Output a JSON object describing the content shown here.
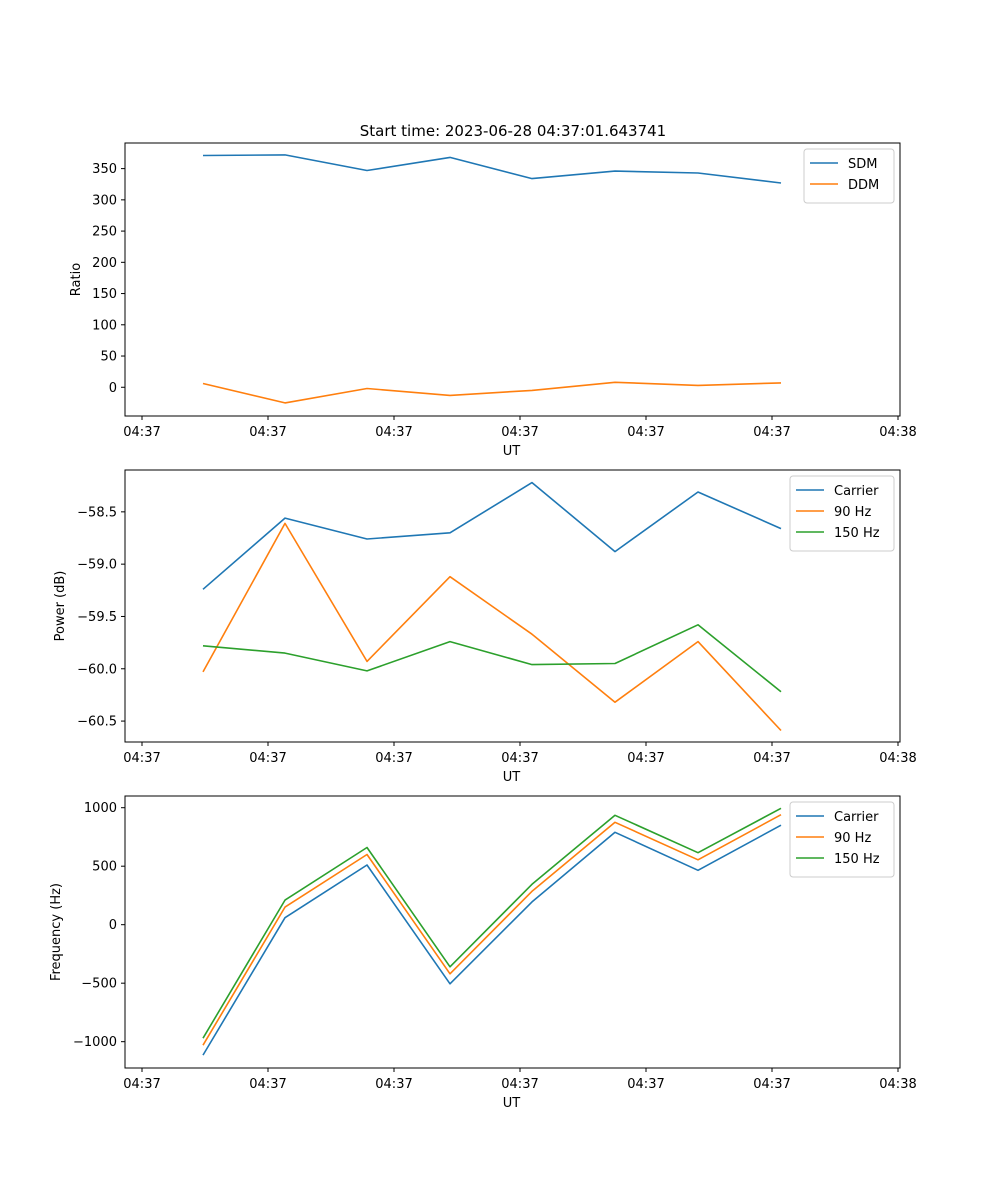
{
  "figure": {
    "title": "Start time: 2023-06-28 04:37:01.643741"
  },
  "chart_data": [
    {
      "type": "line",
      "title": "Start time: 2023-06-28 04:37:01.643741",
      "xlabel": "UT",
      "ylabel": "Ratio",
      "x_tick_labels": [
        "04:37",
        "04:37",
        "04:37",
        "04:37",
        "04:37",
        "04:37",
        "04:37",
        "04:38"
      ],
      "x": [
        1,
        2,
        3,
        4,
        5,
        6,
        7,
        8
      ],
      "y_ticks": [
        0,
        50,
        100,
        150,
        200,
        250,
        300,
        350
      ],
      "ylim": [
        -46,
        391
      ],
      "grid": false,
      "legend_position": "upper right",
      "series": [
        {
          "name": "SDM",
          "color": "#1f77b4",
          "values": [
            371,
            372,
            347,
            368,
            334,
            346,
            343,
            327
          ]
        },
        {
          "name": "DDM",
          "color": "#ff7f0e",
          "values": [
            6,
            -25,
            -2,
            -13,
            -5,
            8,
            3,
            7
          ]
        }
      ]
    },
    {
      "type": "line",
      "xlabel": "UT",
      "ylabel": "Power (dB)",
      "x_tick_labels": [
        "04:37",
        "04:37",
        "04:37",
        "04:37",
        "04:37",
        "04:37",
        "04:37",
        "04:38"
      ],
      "x": [
        1,
        2,
        3,
        4,
        5,
        6,
        7,
        8
      ],
      "y_ticks": [
        -58.5,
        -59.0,
        -59.5,
        -60.0,
        -60.5
      ],
      "y_tick_labels": [
        "−58.5",
        "−59.0",
        "−59.5",
        "−60.0",
        "−60.5"
      ],
      "ylim": [
        -60.7,
        -58.1
      ],
      "grid": false,
      "legend_position": "upper right",
      "series": [
        {
          "name": "Carrier",
          "color": "#1f77b4",
          "values": [
            -59.24,
            -58.56,
            -58.76,
            -58.7,
            -58.22,
            -58.88,
            -58.31,
            -58.66
          ]
        },
        {
          "name": "90 Hz",
          "color": "#ff7f0e",
          "values": [
            -60.03,
            -58.61,
            -59.93,
            -59.12,
            -59.67,
            -60.32,
            -59.74,
            -60.59
          ]
        },
        {
          "name": "150 Hz",
          "color": "#2ca02c",
          "values": [
            -59.78,
            -59.85,
            -60.02,
            -59.74,
            -59.96,
            -59.95,
            -59.58,
            -60.22
          ]
        }
      ]
    },
    {
      "type": "line",
      "xlabel": "UT",
      "ylabel": "Frequency (Hz)",
      "x_tick_labels": [
        "04:37",
        "04:37",
        "04:37",
        "04:37",
        "04:37",
        "04:37",
        "04:37",
        "04:38"
      ],
      "x": [
        1,
        2,
        3,
        4,
        5,
        6,
        7,
        8
      ],
      "y_ticks": [
        1000,
        500,
        0,
        -500,
        -1000
      ],
      "y_tick_labels": [
        "1000",
        "500",
        "0",
        "−500",
        "−1000"
      ],
      "ylim": [
        -1225,
        1100
      ],
      "grid": false,
      "legend_position": "upper right",
      "series": [
        {
          "name": "Carrier",
          "color": "#1f77b4",
          "values": [
            -1115,
            60,
            510,
            -505,
            195,
            790,
            465,
            850
          ]
        },
        {
          "name": "90 Hz",
          "color": "#ff7f0e",
          "values": [
            -1030,
            150,
            600,
            -420,
            285,
            875,
            555,
            940
          ]
        },
        {
          "name": "150 Hz",
          "color": "#2ca02c",
          "values": [
            -970,
            210,
            660,
            -360,
            345,
            935,
            615,
            995
          ]
        }
      ]
    }
  ]
}
